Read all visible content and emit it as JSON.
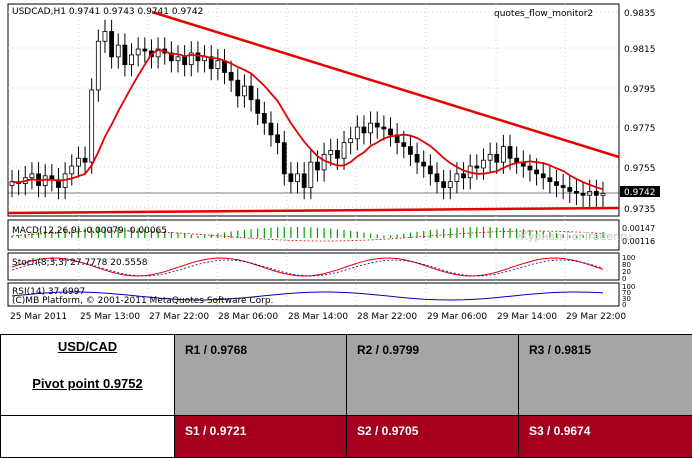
{
  "chart": {
    "header": "USDCAD,H1  0.9741  0.9743  0.9741  0.9742",
    "indicator_label": "quotes_flow_monitor2",
    "price_labels": [
      "0.9835",
      "0.9815",
      "0.9795",
      "0.9775",
      "0.9755",
      "0.9742",
      "0.9735"
    ],
    "current_price": "0.9742",
    "macd_label": "MACD(12,26,9) -0.00079 -0.00065",
    "macd_axis": [
      "0.00147",
      "0.00116"
    ],
    "stoch_label": "Stoch(8,3,3) 27.7778 20.5558",
    "stoch_axis": [
      "100",
      "80",
      "20",
      "0"
    ],
    "rsi_label": "RSI(14) 37.6997",
    "rsi_axis": [
      "100",
      "70",
      "30",
      "0"
    ],
    "copyright": "(C)MB Platform, © 2001-2011 MetaQuotes Software Corp.",
    "watermark": "Журнал ForTrader.ru",
    "time_labels": [
      "25 Mar 2011",
      "25 Mar 13:00",
      "27 Mar 22:00",
      "28 Mar 06:00",
      "28 Mar 14:00",
      "28 Mar 22:00",
      "29 Mar 06:00",
      "29 Mar 14:00",
      "29 Mar 22:00"
    ],
    "colors": {
      "trendline": "#e60000",
      "ma": "#e60000",
      "candle_bull": "#ffffff",
      "candle_bear": "#000000",
      "macd_bars": "#00a000",
      "stoch_main": "#e60000",
      "rsi_line": "#0000c0"
    }
  },
  "table": {
    "pair": "USD/CAD",
    "pivot": "Pivot point 0.9752",
    "resistance": [
      "R1 / 0.9768",
      "R2 / 0.9799",
      "R3 / 0.9815"
    ],
    "support": [
      "S1 / 0.9721",
      "S2 / 0.9705",
      "S3 / 0.9674"
    ]
  }
}
